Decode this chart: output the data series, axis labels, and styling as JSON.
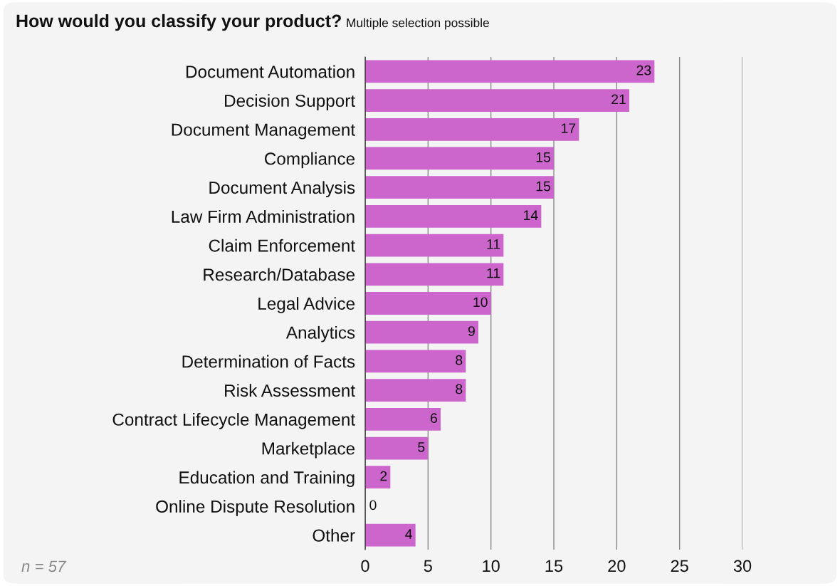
{
  "chart_data": {
    "type": "bar",
    "orientation": "horizontal",
    "title": "How would you classify your product?",
    "subtitle": "Multiple selection possible",
    "categories": [
      "Document Automation",
      "Decision Support",
      "Document Management",
      "Compliance",
      "Document Analysis",
      "Law Firm Administration",
      "Claim Enforcement",
      "Research/Database",
      "Legal Advice",
      "Analytics",
      "Determination of Facts",
      "Risk Assessment",
      "Contract Lifecycle Management",
      "Marketplace",
      "Education and Training",
      "Online Dispute Resolution",
      "Other"
    ],
    "values": [
      23,
      21,
      17,
      15,
      15,
      14,
      11,
      11,
      10,
      9,
      8,
      8,
      6,
      5,
      2,
      0,
      4
    ],
    "color": "#cc66cc",
    "xlim": [
      0,
      30
    ],
    "xticks": [
      0,
      5,
      10,
      15,
      20,
      25,
      30
    ],
    "grid": "x",
    "data_labels": true,
    "legend": false,
    "annotations": [
      "n = 57"
    ]
  }
}
